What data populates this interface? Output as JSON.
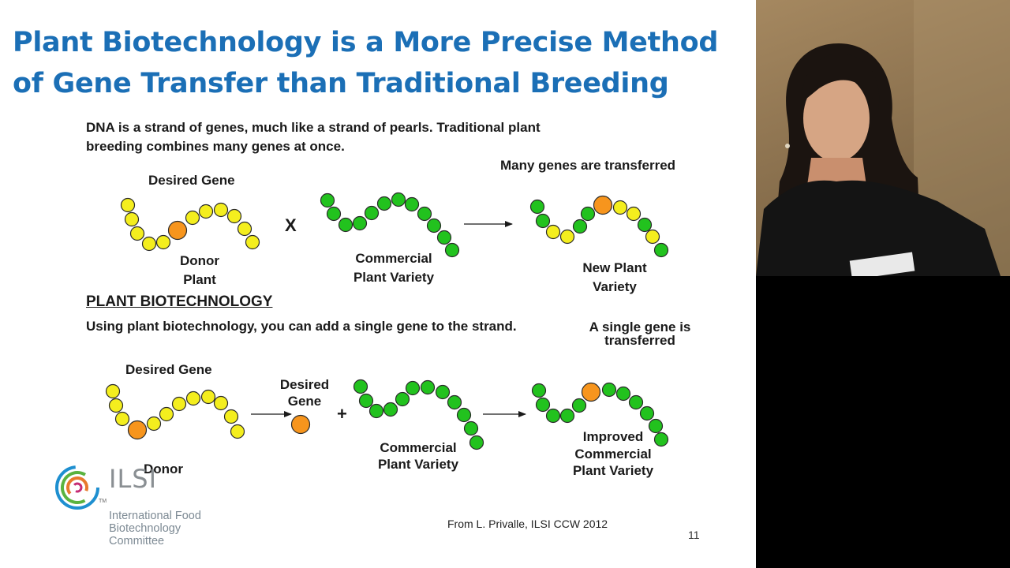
{
  "slide": {
    "title_line1": "Plant Biotechnology is a More Precise Method",
    "title_line2": "of Gene Transfer than Traditional Breeding",
    "intro_line1": "DNA is a strand of genes, much like a strand of pearls.  Traditional plant",
    "intro_line2": "breeding combines many genes at once.",
    "traditional": {
      "desired_gene": "Desired Gene",
      "donor_line1": "Donor",
      "donor_line2": "Plant",
      "cross_symbol": "X",
      "commercial_line1": "Commercial",
      "commercial_line2": "Plant Variety",
      "many_genes": "Many genes are transferred",
      "new_line1": "New Plant",
      "new_line2": "Variety"
    },
    "biotech": {
      "heading": "PLANT BIOTECHNOLOGY",
      "intro": "Using plant biotechnology, you can add a single gene to the strand.",
      "single_line1": "A single gene is",
      "single_line2": "transferred",
      "desired_gene": "Desired Gene",
      "donor": "Donor",
      "desired2_line1": "Desired",
      "desired2_line2": "Gene",
      "plus_symbol": "+",
      "commercial_line1": "Commercial",
      "commercial_line2": "Plant Variety",
      "improved_line1": "Improved",
      "improved_line2": "Commercial",
      "improved_line3": "Plant Variety"
    },
    "footnote": "From L. Privalle, ILSI CCW 2012",
    "page_number": "11",
    "logo": {
      "wordmark": "ILSI",
      "trademark": "TM",
      "subtitle": "International Food\nBiotechnology\nCommittee"
    },
    "colors": {
      "title": "#1b6fb6",
      "gene_yellow": "#f4ee1e",
      "gene_green": "#22c21e",
      "gene_orange": "#f7951d",
      "gene_outline": "#2a2a2a"
    }
  }
}
